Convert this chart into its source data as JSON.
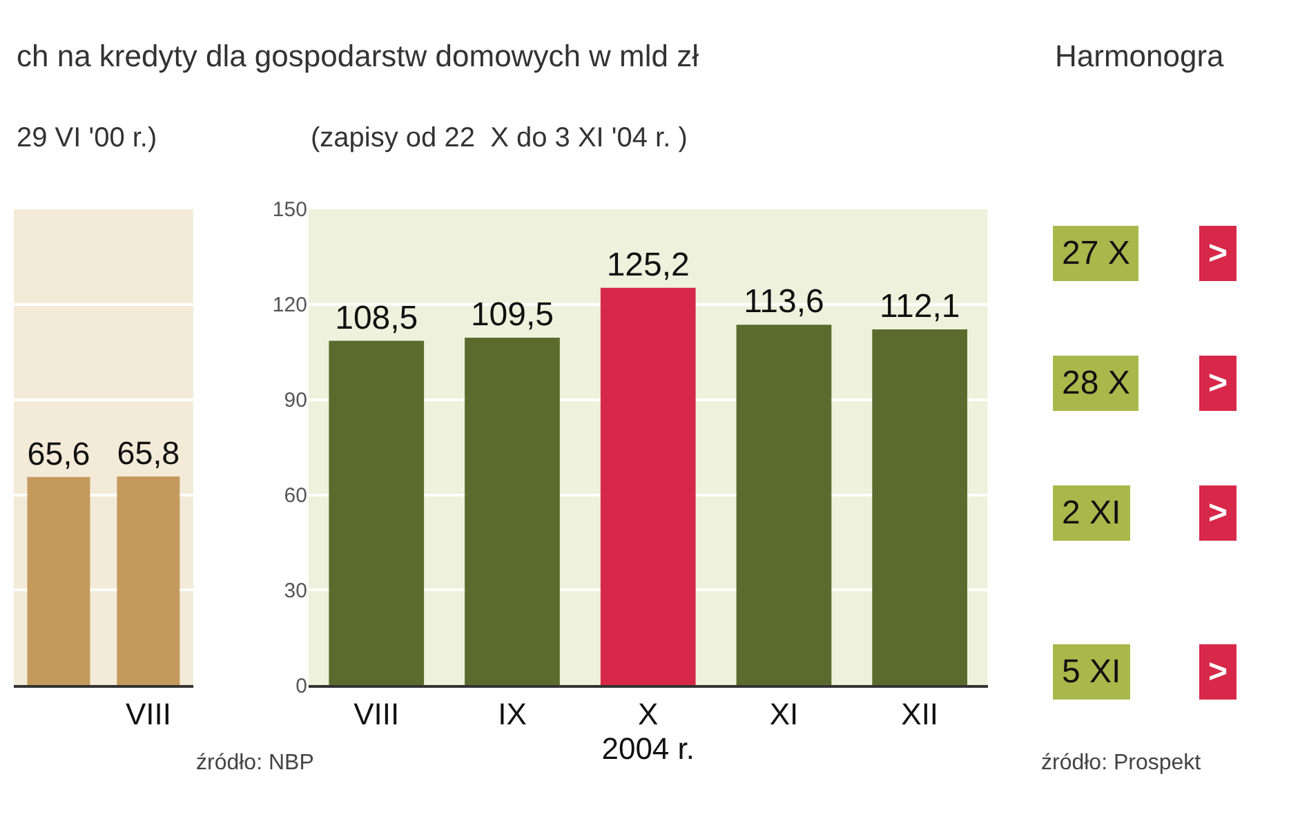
{
  "chart_data": [
    {
      "type": "bar",
      "title": "ch na kredyty dla gospodarstw domowych w mld zł",
      "subtitle": "29 VI '00 r.)",
      "categories": [
        null,
        "VIII"
      ],
      "values": [
        65.6,
        65.8
      ],
      "color": "#c49a5c",
      "value_labels": [
        "65,6",
        "65,8"
      ],
      "ylim": [
        0,
        150
      ],
      "yticks": [
        0,
        30,
        60,
        90,
        120,
        150
      ],
      "grid": "y",
      "tick_labels": "x"
    },
    {
      "type": "bar",
      "subtitle": "(zapisy od 22  X do 3 XI '04 r. )",
      "categories": [
        "VIII",
        "IX",
        "X",
        "XI",
        "XII"
      ],
      "values": [
        108.5,
        109.5,
        125.2,
        113.6,
        112.1
      ],
      "colors": [
        "#5b6b2e",
        "#5b6b2e",
        "#d8284a",
        "#5b6b2e",
        "#5b6b2e"
      ],
      "value_labels": [
        "108,5",
        "109,5",
        "125,2",
        "113,6",
        "112,1"
      ],
      "xlabel": "2004 r.",
      "ylim": [
        0,
        150
      ],
      "yticks": [
        0,
        30,
        60,
        90,
        120,
        150
      ],
      "grid": "y",
      "annotations": [
        "źródło: NBP"
      ]
    },
    {
      "type": "other",
      "title": "Harmonogra",
      "annotations": [
        "27 X",
        ">",
        "28 X",
        ">",
        "2 XI",
        ">",
        "5 XI",
        ">",
        "źródło: Prospekt"
      ]
    }
  ]
}
